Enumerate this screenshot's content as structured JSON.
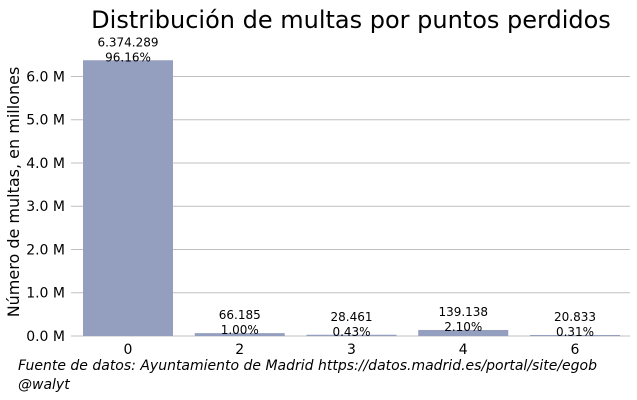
{
  "chart_data": {
    "type": "bar",
    "title": "Distribución de multas por puntos perdidos",
    "xlabel": "",
    "ylabel": "Número de multas, en millones",
    "categories": [
      "0",
      "2",
      "3",
      "4",
      "6"
    ],
    "values": [
      6374289,
      66185,
      28461,
      139138,
      20833
    ],
    "value_labels": [
      "6.374.289",
      "66.185",
      "28.461",
      "139.138",
      "20.833"
    ],
    "percent_labels": [
      "96.16%",
      "1.00%",
      "0.43%",
      "2.10%",
      "0.31%"
    ],
    "yticks": [
      0,
      1000000,
      2000000,
      3000000,
      4000000,
      5000000,
      6000000
    ],
    "ytick_labels": [
      "0.0 M",
      "1.0 M",
      "2.0 M",
      "3.0 M",
      "4.0 M",
      "5.0 M",
      "6.0 M"
    ],
    "ylim": [
      0,
      6750000
    ],
    "grid": "horizontal",
    "bar_color": "#949fbf",
    "grid_color": "#c0c0c0"
  },
  "footer": {
    "source": "Fuente de datos: Ayuntamiento de Madrid https://datos.madrid.es/portal/site/egob",
    "author": "@walyt"
  }
}
